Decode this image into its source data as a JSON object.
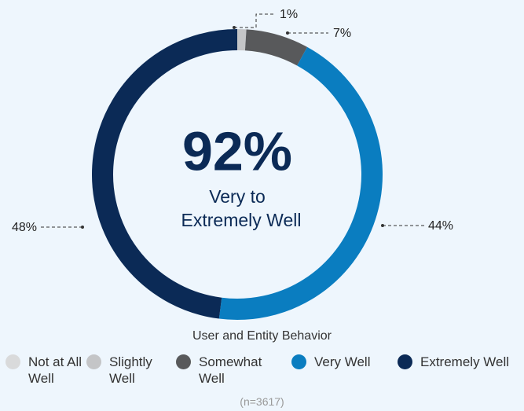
{
  "chart_data": {
    "type": "donut",
    "title": "User and Entity Behavior",
    "center_value": "92%",
    "center_label": [
      "Very to",
      "Extremely Well"
    ],
    "footnote": "(n=3617)",
    "categories": [
      "Not at All Well",
      "Slightly Well",
      "Somewhat Well",
      "Very Well",
      "Extremely Well"
    ],
    "values": [
      0,
      1,
      7,
      44,
      48
    ],
    "value_labels": [
      null,
      "1%",
      "7%",
      "44%",
      "48%"
    ],
    "colors": [
      "#d9dadb",
      "#c4c5c7",
      "#58595b",
      "#0a7dc0",
      "#0b2a56"
    ]
  }
}
